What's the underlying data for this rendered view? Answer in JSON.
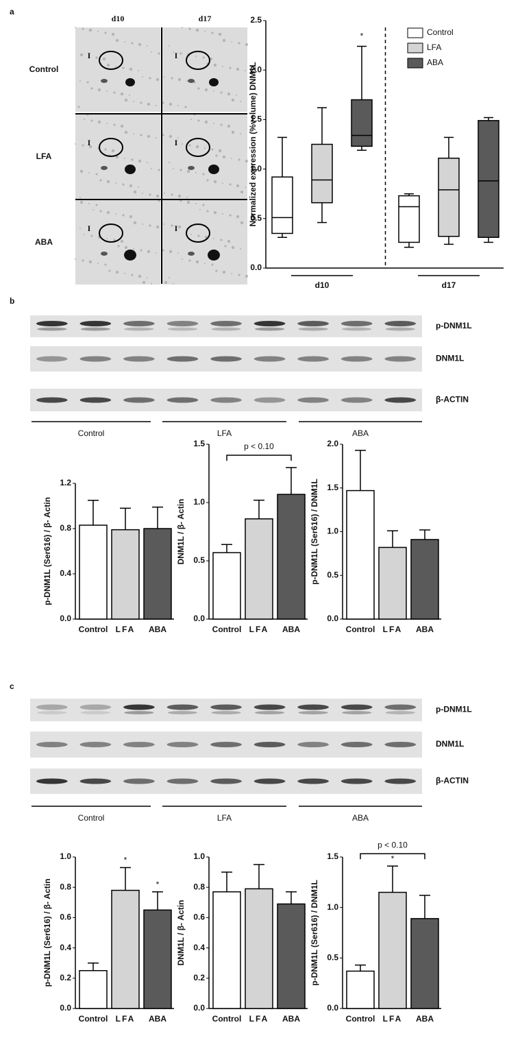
{
  "figure": {
    "panels": [
      "a",
      "b",
      "c"
    ],
    "gel": {
      "columns": [
        "d10",
        "d17"
      ],
      "rows": [
        "Control",
        "LFA",
        "ABA"
      ],
      "marker": "I"
    },
    "blots": [
      {
        "rows": [
          "p-DNM1L",
          "DNM1L",
          "β-ACTIN"
        ],
        "groups": [
          "Control",
          "LFA",
          "ABA"
        ]
      },
      {
        "rows": [
          "p-DNM1L",
          "DNM1L",
          "β-ACTIN"
        ],
        "groups": [
          "Control",
          "LFA",
          "ABA"
        ]
      }
    ]
  },
  "chart_data": [
    {
      "type": "box",
      "ylabel": "Normalized expression (%volume) DNM1L",
      "categories": [
        "d10",
        "d17"
      ],
      "series": [
        {
          "name": "Control",
          "color": "#ffffff",
          "min": [
            0.31,
            0.21
          ],
          "q1": [
            0.35,
            0.26
          ],
          "median": [
            0.51,
            0.62
          ],
          "q3": [
            0.92,
            0.73
          ],
          "max": [
            1.32,
            0.75
          ]
        },
        {
          "name": "LFA",
          "color": "#d4d4d4",
          "min": [
            0.46,
            0.24
          ],
          "q1": [
            0.66,
            0.32
          ],
          "median": [
            0.89,
            0.79
          ],
          "q3": [
            1.25,
            1.11
          ],
          "max": [
            1.62,
            1.32
          ]
        },
        {
          "name": "ABA",
          "color": "#5a5a5a",
          "min": [
            1.19,
            0.26
          ],
          "q1": [
            1.23,
            0.31
          ],
          "median": [
            1.34,
            0.88
          ],
          "q3": [
            1.7,
            1.49
          ],
          "max": [
            2.24,
            1.52
          ]
        }
      ],
      "ylim": [
        0,
        2.5
      ],
      "yticks": [
        {
          "value": 0,
          "label": "0.0"
        },
        {
          "value": 0.5,
          "label": "0.5"
        },
        {
          "value": 1,
          "label": "1.0"
        },
        {
          "value": 1.5,
          "label": "1.5"
        },
        {
          "value": 2,
          "label": "2.0"
        },
        {
          "value": 2.5,
          "label": "2.5"
        }
      ],
      "annotations": [
        {
          "text": "*",
          "series": "ABA",
          "category": "d10"
        }
      ],
      "legend": "upper right"
    },
    {
      "type": "bar",
      "ylabel": "p-DNM1L (Ser616) / β- Actin",
      "categories": [
        "Control",
        "LFA",
        "ABA"
      ],
      "values": [
        0.83,
        0.79,
        0.8
      ],
      "errors": [
        0.22,
        0.19,
        0.19
      ],
      "colors": [
        "#ffffff",
        "#d4d4d4",
        "#5a5a5a"
      ],
      "ylim": [
        0,
        1.2
      ],
      "yticks": [
        {
          "value": 0,
          "label": "0.0"
        },
        {
          "value": 0.4,
          "label": "0.4"
        },
        {
          "value": 0.8,
          "label": "0.8"
        },
        {
          "value": 1.2,
          "label": "1.2"
        }
      ],
      "annotations": []
    },
    {
      "type": "bar",
      "ylabel": "DNM1L / β- Actin",
      "categories": [
        "Control",
        "LFA",
        "ABA"
      ],
      "values": [
        0.57,
        0.86,
        1.07
      ],
      "errors": [
        0.07,
        0.16,
        0.23
      ],
      "colors": [
        "#ffffff",
        "#d4d4d4",
        "#5a5a5a"
      ],
      "ylim": [
        0,
        1.5
      ],
      "yticks": [
        {
          "value": 0,
          "label": "0.0"
        },
        {
          "value": 0.5,
          "label": "0.5"
        },
        {
          "value": 1,
          "label": "1.0"
        },
        {
          "value": 1.5,
          "label": "1.5"
        }
      ],
      "annotations": [
        {
          "text": "p < 0.10",
          "from": "Control",
          "to": "ABA"
        }
      ]
    },
    {
      "type": "bar",
      "ylabel": "p-DNM1L (Ser616) / DNM1L",
      "categories": [
        "Control",
        "LFA",
        "ABA"
      ],
      "values": [
        1.47,
        0.82,
        0.91
      ],
      "errors": [
        0.46,
        0.19,
        0.11
      ],
      "colors": [
        "#ffffff",
        "#d4d4d4",
        "#5a5a5a"
      ],
      "ylim": [
        0,
        2
      ],
      "yticks": [
        {
          "value": 0,
          "label": "0.0"
        },
        {
          "value": 0.5,
          "label": "0.5"
        },
        {
          "value": 1,
          "label": "1.0"
        },
        {
          "value": 1.5,
          "label": "1.5"
        },
        {
          "value": 2,
          "label": "2.0"
        }
      ],
      "annotations": []
    },
    {
      "type": "bar",
      "ylabel": "p-DNM1L (Ser616) / β- Actin",
      "categories": [
        "Control",
        "LFA",
        "ABA"
      ],
      "values": [
        0.25,
        0.78,
        0.65
      ],
      "errors": [
        0.05,
        0.15,
        0.12
      ],
      "colors": [
        "#ffffff",
        "#d4d4d4",
        "#5a5a5a"
      ],
      "ylim": [
        0,
        1
      ],
      "yticks": [
        {
          "value": 0,
          "label": "0.0"
        },
        {
          "value": 0.2,
          "label": "0.2"
        },
        {
          "value": 0.4,
          "label": "0.4"
        },
        {
          "value": 0.6,
          "label": "0.6"
        },
        {
          "value": 0.8,
          "label": "0.8"
        },
        {
          "value": 1,
          "label": "1.0"
        }
      ],
      "annotations": [
        {
          "text": "*",
          "at": "LFA"
        },
        {
          "text": "*",
          "at": "ABA"
        }
      ]
    },
    {
      "type": "bar",
      "ylabel": "DNM1L / β- Actin",
      "categories": [
        "Control",
        "LFA",
        "ABA"
      ],
      "values": [
        0.77,
        0.79,
        0.69
      ],
      "errors": [
        0.13,
        0.16,
        0.08
      ],
      "colors": [
        "#ffffff",
        "#d4d4d4",
        "#5a5a5a"
      ],
      "ylim": [
        0,
        1
      ],
      "yticks": [
        {
          "value": 0,
          "label": "0.0"
        },
        {
          "value": 0.2,
          "label": "0.2"
        },
        {
          "value": 0.4,
          "label": "0.4"
        },
        {
          "value": 0.6,
          "label": "0.6"
        },
        {
          "value": 0.8,
          "label": "0.8"
        },
        {
          "value": 1,
          "label": "1.0"
        }
      ],
      "annotations": []
    },
    {
      "type": "bar",
      "ylabel": "p-DNM1L (Ser616) / DNM1L",
      "categories": [
        "Control",
        "LFA",
        "ABA"
      ],
      "values": [
        0.37,
        1.15,
        0.89
      ],
      "errors": [
        0.06,
        0.26,
        0.23
      ],
      "colors": [
        "#ffffff",
        "#d4d4d4",
        "#5a5a5a"
      ],
      "ylim": [
        0,
        1.5
      ],
      "yticks": [
        {
          "value": 0,
          "label": "0.0"
        },
        {
          "value": 0.5,
          "label": "0.5"
        },
        {
          "value": 1,
          "label": "1.0"
        },
        {
          "value": 1.5,
          "label": "1.5"
        }
      ],
      "annotations": [
        {
          "text": "*",
          "at": "LFA"
        },
        {
          "text": "p < 0.10",
          "from": "Control",
          "to": "ABA"
        }
      ]
    }
  ]
}
